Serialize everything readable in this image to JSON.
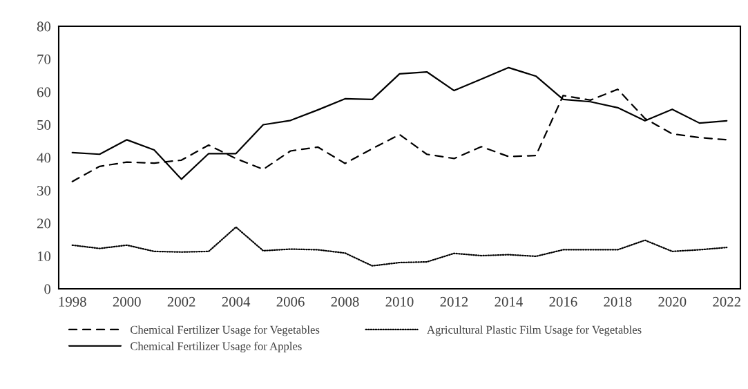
{
  "chart_data": {
    "type": "line",
    "categories": [
      "1998",
      null,
      "2000",
      null,
      "2002",
      null,
      "2004",
      null,
      "2006",
      null,
      "2008",
      null,
      "2010",
      null,
      "2012",
      null,
      "2014",
      null,
      "2016",
      null,
      "2018",
      null,
      "2020",
      null,
      "2022"
    ],
    "series": [
      {
        "name": "Chemical Fertilizer Usage for Vegetables",
        "color": "#000000",
        "line_style": "dashed",
        "values": [
          32.7,
          37.3,
          38.6,
          38.3,
          39.2,
          43.8,
          39.7,
          36.4,
          42.0,
          43.2,
          38.2,
          42.7,
          47.0,
          41.0,
          39.7,
          43.3,
          40.3,
          40.6,
          58.9,
          57.5,
          60.8,
          51.9,
          47.2,
          46.1,
          45.4
        ]
      },
      {
        "name": "Agricultural Plastic Film Usage for Vegetables",
        "color": "#000000",
        "line_style": "dotted",
        "values": [
          13.3,
          12.3,
          13.3,
          11.4,
          11.2,
          11.4,
          18.8,
          11.6,
          12.1,
          11.9,
          10.9,
          7.0,
          8.0,
          8.2,
          10.8,
          10.1,
          10.4,
          9.9,
          11.9,
          11.9,
          11.9,
          14.8,
          11.4,
          11.9,
          12.6
        ]
      },
      {
        "name": "Chemical Fertilizer Usage for Apples",
        "color": "#000000",
        "line_style": "solid",
        "values": [
          41.5,
          41.0,
          45.4,
          42.3,
          33.4,
          41.2,
          41.2,
          50.0,
          51.3,
          54.5,
          57.9,
          57.7,
          65.5,
          66.1,
          60.4,
          63.9,
          67.4,
          64.8,
          57.7,
          57.0,
          55.2,
          51.2,
          54.7,
          50.5,
          51.2
        ]
      }
    ],
    "ylim": [
      0,
      80
    ],
    "yticks": [
      0,
      10,
      20,
      30,
      40,
      50,
      60,
      70,
      80
    ],
    "grid": false,
    "legend": "bottom",
    "marker": "none"
  }
}
